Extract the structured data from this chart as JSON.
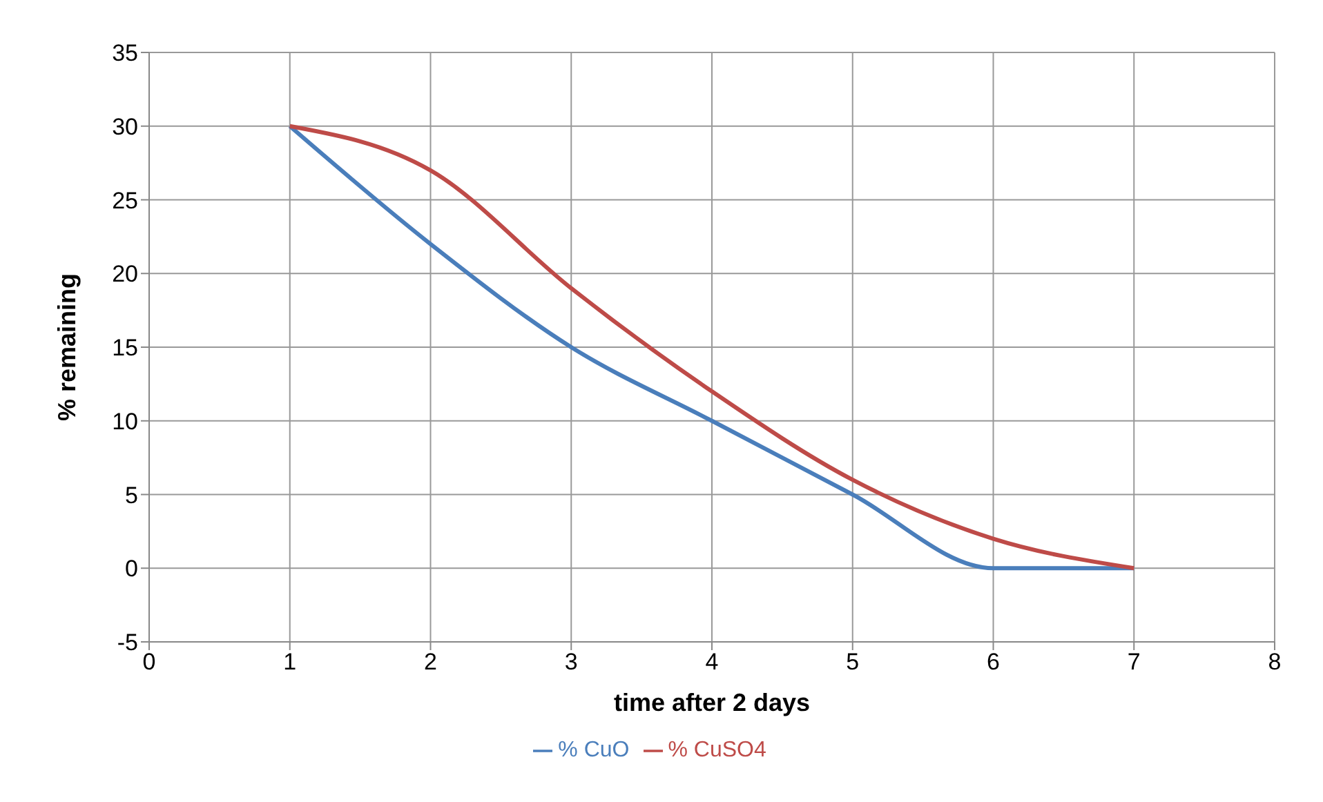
{
  "chart_data": {
    "type": "line",
    "xlabel": "time after 2 days",
    "ylabel": "% remaining",
    "x": [
      1,
      2,
      3,
      4,
      5,
      6,
      7
    ],
    "series": [
      {
        "name": "% CuO",
        "color": "#4a7ebb",
        "values": [
          30,
          22,
          15,
          10,
          5,
          0,
          0
        ]
      },
      {
        "name": "% CuSO4",
        "color": "#be4b48",
        "values": [
          30,
          27,
          19,
          12,
          6,
          2,
          0
        ]
      }
    ],
    "xlim": [
      0,
      8
    ],
    "xticks": [
      0,
      1,
      2,
      3,
      4,
      5,
      6,
      7,
      8
    ],
    "ylim": [
      -5,
      35
    ],
    "yticks": [
      -5,
      0,
      5,
      10,
      15,
      20,
      25,
      30,
      35
    ],
    "grid": true,
    "legend": "bottom"
  }
}
